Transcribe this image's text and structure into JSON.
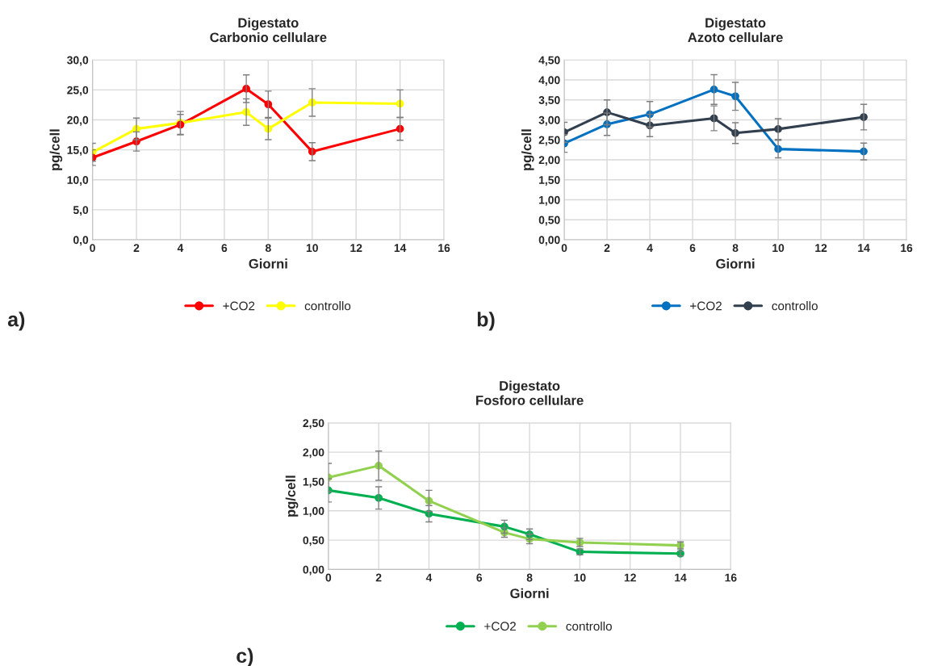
{
  "chart_data": [
    {
      "type": "line",
      "title": "Digestato",
      "subtitle": "Carbonio cellulare",
      "xlabel": "Giorni",
      "ylabel": "pg/cell",
      "x": [
        0,
        2,
        4,
        7,
        8,
        10,
        14
      ],
      "series": [
        {
          "name": "+CO2",
          "color": "#ff0000",
          "values": [
            13.7,
            16.4,
            19.2,
            25.2,
            22.6,
            14.7,
            18.5
          ],
          "errors": [
            1.3,
            1.6,
            1.7,
            2.3,
            2.2,
            1.5,
            1.9
          ]
        },
        {
          "name": "controllo",
          "color": "#ffff00",
          "values": [
            14.6,
            18.5,
            19.5,
            21.3,
            18.5,
            22.9,
            22.7
          ],
          "errors": [
            1.5,
            1.8,
            1.9,
            2.2,
            1.8,
            2.3,
            2.3
          ]
        }
      ],
      "xlim": [
        0,
        16
      ],
      "xticks": [
        0,
        2,
        4,
        6,
        8,
        10,
        12,
        14,
        16
      ],
      "ylim": [
        0,
        30
      ],
      "yticks": [
        {
          "value": 0,
          "label": "0,0"
        },
        {
          "value": 5,
          "label": "5,0"
        },
        {
          "value": 10,
          "label": "10,0"
        },
        {
          "value": 15,
          "label": "15,0"
        },
        {
          "value": 20,
          "label": "20,0"
        },
        {
          "value": 25,
          "label": "25,0"
        },
        {
          "value": 30,
          "label": "30,0"
        }
      ],
      "grid": true,
      "legend": "bottom",
      "marker": "circle",
      "line_style": "solid",
      "annotations": [
        "a)"
      ]
    },
    {
      "type": "line",
      "title": "Digestato",
      "subtitle": "Azoto cellulare",
      "xlabel": "Giorni",
      "ylabel": "pg/cell",
      "x": [
        0,
        2,
        4,
        7,
        8,
        10,
        14
      ],
      "series": [
        {
          "name": "+CO2",
          "color": "#0070c0",
          "values": [
            2.41,
            2.89,
            3.14,
            3.76,
            3.59,
            2.27,
            2.21
          ],
          "errors": [
            0.22,
            0.28,
            0.32,
            0.37,
            0.35,
            0.22,
            0.21
          ]
        },
        {
          "name": "controllo",
          "color": "#323f4f",
          "values": [
            2.69,
            3.19,
            2.86,
            3.04,
            2.67,
            2.77,
            3.07
          ],
          "errors": [
            0.25,
            0.31,
            0.28,
            0.31,
            0.26,
            0.26,
            0.32
          ]
        }
      ],
      "xlim": [
        0,
        16
      ],
      "xticks": [
        0,
        2,
        4,
        6,
        8,
        10,
        12,
        14,
        16
      ],
      "ylim": [
        0,
        4.5
      ],
      "yticks": [
        {
          "value": 0,
          "label": "0,00"
        },
        {
          "value": 0.5,
          "label": "0,50"
        },
        {
          "value": 1,
          "label": "1,00"
        },
        {
          "value": 1.5,
          "label": "1,50"
        },
        {
          "value": 2,
          "label": "2,00"
        },
        {
          "value": 2.5,
          "label": "2,50"
        },
        {
          "value": 3,
          "label": "3,00"
        },
        {
          "value": 3.5,
          "label": "3,50"
        },
        {
          "value": 4,
          "label": "4,00"
        },
        {
          "value": 4.5,
          "label": "4,50"
        }
      ],
      "grid": true,
      "legend": "bottom",
      "marker": "circle",
      "line_style": "solid",
      "annotations": [
        "b)"
      ]
    },
    {
      "type": "line",
      "title": "Digestato",
      "subtitle": "Fosforo cellulare",
      "xlabel": "Giorni",
      "ylabel": "pg/cell",
      "x": [
        0,
        2,
        4,
        7,
        8,
        10,
        14
      ],
      "series": [
        {
          "name": "+CO2",
          "color": "#00b050",
          "values": [
            1.35,
            1.22,
            0.95,
            0.73,
            0.6,
            0.3,
            0.27
          ],
          "errors": [
            0.2,
            0.19,
            0.14,
            0.11,
            0.09,
            0.05,
            0.04
          ]
        },
        {
          "name": "controllo",
          "color": "#92d050",
          "values": [
            1.57,
            1.77,
            1.17,
            0.63,
            0.52,
            0.46,
            0.41
          ],
          "errors": [
            0.24,
            0.25,
            0.18,
            0.08,
            0.08,
            0.07,
            0.06
          ]
        }
      ],
      "xlim": [
        0,
        16
      ],
      "xticks": [
        0,
        2,
        4,
        6,
        8,
        10,
        12,
        14,
        16
      ],
      "ylim": [
        0,
        2.5
      ],
      "yticks": [
        {
          "value": 0,
          "label": "0,00"
        },
        {
          "value": 0.5,
          "label": "0,50"
        },
        {
          "value": 1,
          "label": "1,00"
        },
        {
          "value": 1.5,
          "label": "1,50"
        },
        {
          "value": 2,
          "label": "2,00"
        },
        {
          "value": 2.5,
          "label": "2,50"
        }
      ],
      "grid": true,
      "legend": "bottom",
      "marker": "circle",
      "line_style": "solid",
      "annotations": [
        "c)"
      ]
    }
  ]
}
